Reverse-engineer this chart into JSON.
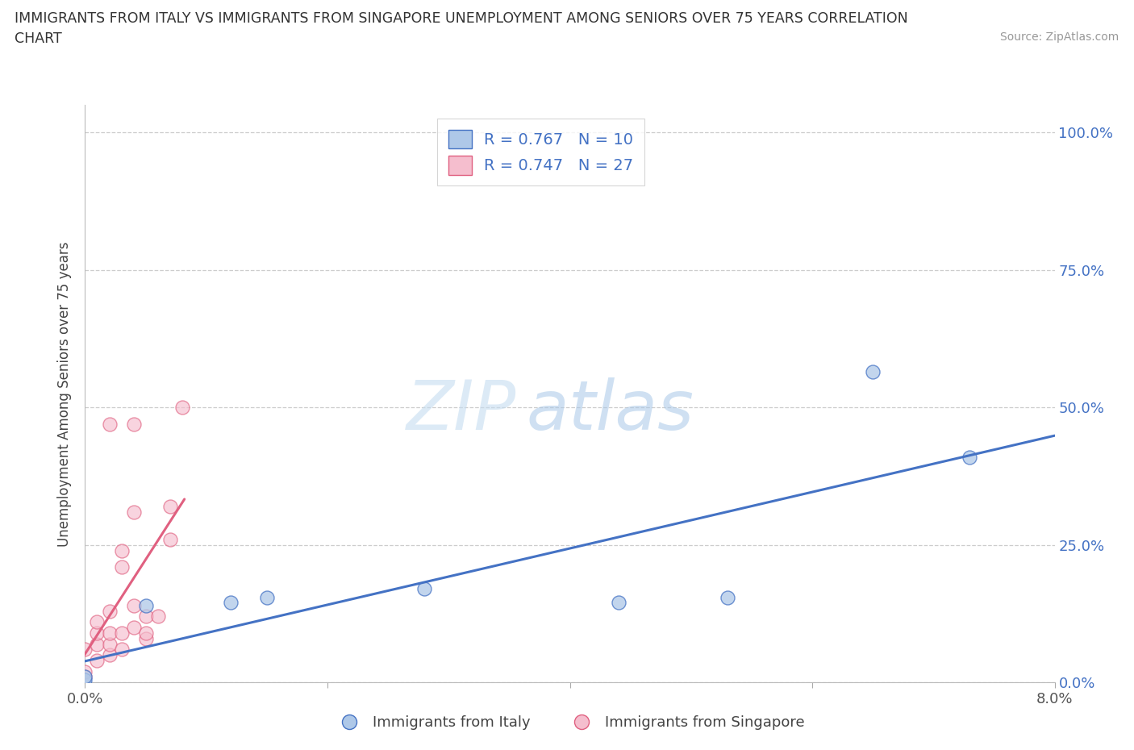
{
  "title_line1": "IMMIGRANTS FROM ITALY VS IMMIGRANTS FROM SINGAPORE UNEMPLOYMENT AMONG SENIORS OVER 75 YEARS CORRELATION",
  "title_line2": "CHART",
  "source": "Source: ZipAtlas.com",
  "ylabel": "Unemployment Among Seniors over 75 years",
  "xlim": [
    0.0,
    0.08
  ],
  "ylim": [
    0.0,
    1.05
  ],
  "xticks": [
    0.0,
    0.02,
    0.04,
    0.06,
    0.08
  ],
  "yticks": [
    0.0,
    0.25,
    0.5,
    0.75,
    1.0
  ],
  "xtick_labels_show": [
    "0.0%",
    "",
    "",
    "",
    "8.0%"
  ],
  "ytick_labels_right": [
    "0.0%",
    "25.0%",
    "50.0%",
    "75.0%",
    "100.0%"
  ],
  "italy_color": "#aec8e8",
  "italy_edge_color": "#4472c4",
  "singapore_color": "#f5bece",
  "singapore_edge_color": "#e06080",
  "italy_R": "0.767",
  "italy_N": "10",
  "singapore_R": "0.747",
  "singapore_N": "27",
  "watermark_zip": "ZIP",
  "watermark_atlas": "atlas",
  "italy_points_x": [
    0.0,
    0.0,
    0.005,
    0.012,
    0.015,
    0.028,
    0.044,
    0.053,
    0.065,
    0.073
  ],
  "italy_points_y": [
    0.005,
    0.01,
    0.14,
    0.145,
    0.155,
    0.17,
    0.145,
    0.155,
    0.565,
    0.41
  ],
  "singapore_points_x": [
    0.0,
    0.0,
    0.0,
    0.001,
    0.001,
    0.001,
    0.001,
    0.002,
    0.002,
    0.002,
    0.002,
    0.002,
    0.003,
    0.003,
    0.003,
    0.003,
    0.004,
    0.004,
    0.004,
    0.004,
    0.005,
    0.005,
    0.005,
    0.006,
    0.007,
    0.007,
    0.008
  ],
  "singapore_points_y": [
    0.01,
    0.02,
    0.06,
    0.04,
    0.07,
    0.09,
    0.11,
    0.05,
    0.07,
    0.09,
    0.13,
    0.47,
    0.06,
    0.09,
    0.21,
    0.24,
    0.1,
    0.14,
    0.31,
    0.47,
    0.08,
    0.09,
    0.12,
    0.12,
    0.26,
    0.32,
    0.5
  ]
}
